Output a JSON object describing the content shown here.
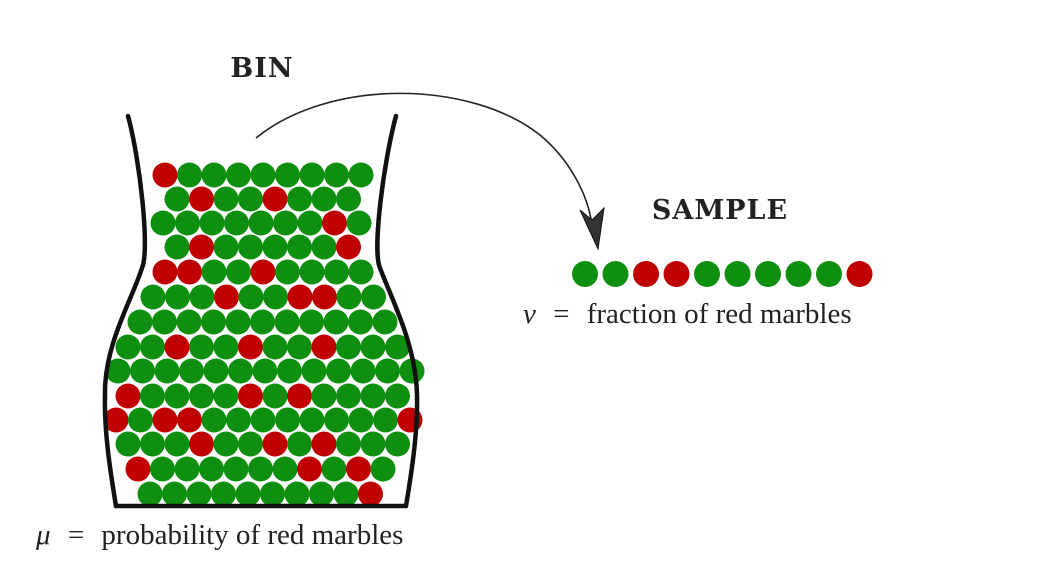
{
  "bin": {
    "title": "BIN",
    "caption_symbol": "μ",
    "caption_equals": "=",
    "caption_text": "probability of red marbles"
  },
  "sample": {
    "title": "SAMPLE",
    "caption_symbol": "ν",
    "caption_equals": "=",
    "caption_text": "fraction of red marbles",
    "marbles": [
      "green",
      "green",
      "red",
      "red",
      "green",
      "green",
      "green",
      "green",
      "green",
      "red"
    ]
  },
  "colors": {
    "green": "#0f8f0f",
    "red": "#c00000",
    "outline": "#111111"
  },
  "icons": {
    "arrow": "curved-arrow-icon",
    "bin": "bin-outline-icon"
  }
}
